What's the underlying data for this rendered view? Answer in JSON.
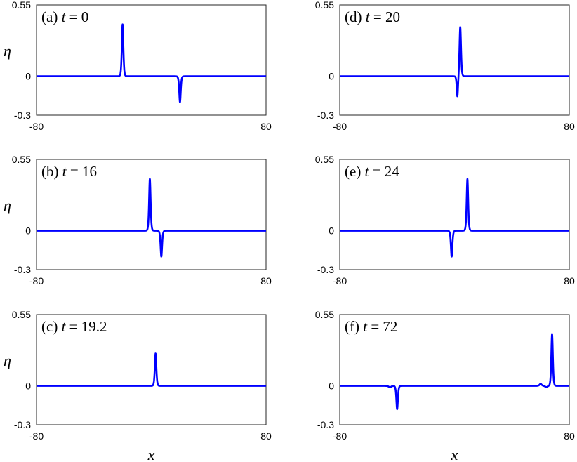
{
  "chart_data": [
    {
      "type": "line",
      "label": "(a)",
      "time_symbol": "t",
      "time_value": "0",
      "xlim": [
        -80,
        80
      ],
      "ylim": [
        -0.3,
        0.55
      ],
      "xticks": [
        "-80",
        "80"
      ],
      "yticks": [
        "-0.3",
        "0",
        "0.55"
      ],
      "ylabel": "η",
      "xlabel": "",
      "color": "#0000ff",
      "series": [
        {
          "pulses": [
            {
              "x": -20,
              "amp": 0.4,
              "width": 0.7
            },
            {
              "x": 20,
              "amp": -0.2,
              "width": 0.7
            }
          ]
        }
      ]
    },
    {
      "type": "line",
      "label": "(b)",
      "time_symbol": "t",
      "time_value": "16",
      "xlim": [
        -80,
        80
      ],
      "ylim": [
        -0.3,
        0.55
      ],
      "xticks": [
        "-80",
        "80"
      ],
      "yticks": [
        "-0.3",
        "0",
        "0.55"
      ],
      "ylabel": "η",
      "xlabel": "",
      "color": "#0000ff",
      "series": [
        {
          "pulses": [
            {
              "x": -1,
              "amp": 0.4,
              "width": 0.7
            },
            {
              "x": 7,
              "amp": -0.2,
              "width": 0.7
            }
          ]
        }
      ]
    },
    {
      "type": "line",
      "label": "(c)",
      "time_symbol": "t",
      "time_value": "19.2",
      "xlim": [
        -80,
        80
      ],
      "ylim": [
        -0.3,
        0.55
      ],
      "xticks": [
        "-80",
        "80"
      ],
      "yticks": [
        "-0.3",
        "0",
        "0.55"
      ],
      "ylabel": "η",
      "xlabel": "x",
      "color": "#0000ff",
      "series": [
        {
          "pulses": [
            {
              "x": 3,
              "amp": 0.25,
              "width": 0.7
            }
          ]
        }
      ]
    },
    {
      "type": "line",
      "label": "(d)",
      "time_symbol": "t",
      "time_value": "20",
      "xlim": [
        -80,
        80
      ],
      "ylim": [
        -0.3,
        0.55
      ],
      "xticks": [
        "-80",
        "80"
      ],
      "yticks": [
        "-0.3",
        "0",
        "0.55"
      ],
      "ylabel": "",
      "xlabel": "",
      "color": "#0000ff",
      "series": [
        {
          "pulses": [
            {
              "x": 4,
              "amp": 0.38,
              "width": 0.7
            },
            {
              "x": 2,
              "amp": -0.16,
              "width": 0.6
            }
          ]
        }
      ]
    },
    {
      "type": "line",
      "label": "(e)",
      "time_symbol": "t",
      "time_value": "24",
      "xlim": [
        -80,
        80
      ],
      "ylim": [
        -0.3,
        0.55
      ],
      "xticks": [
        "-80",
        "80"
      ],
      "yticks": [
        "-0.3",
        "0",
        "0.55"
      ],
      "ylabel": "",
      "xlabel": "",
      "color": "#0000ff",
      "series": [
        {
          "pulses": [
            {
              "x": 9,
              "amp": 0.4,
              "width": 0.7
            },
            {
              "x": -2,
              "amp": -0.2,
              "width": 0.7
            }
          ]
        }
      ]
    },
    {
      "type": "line",
      "label": "(f)",
      "time_symbol": "t",
      "time_value": "72",
      "xlim": [
        -80,
        80
      ],
      "ylim": [
        -0.3,
        0.55
      ],
      "xticks": [
        "-80",
        "80"
      ],
      "yticks": [
        "-0.3",
        "0",
        "0.55"
      ],
      "ylabel": "",
      "xlabel": "x",
      "color": "#0000ff",
      "series": [
        {
          "pulses": [
            {
              "x": 68,
              "amp": 0.4,
              "width": 0.7
            },
            {
              "x": 64,
              "amp": -0.01,
              "width": 1.0
            },
            {
              "x": 60,
              "amp": 0.015,
              "width": 1.0
            },
            {
              "x": -40,
              "amp": -0.18,
              "width": 0.7
            },
            {
              "x": -45,
              "amp": -0.01,
              "width": 1.2
            }
          ]
        }
      ]
    }
  ]
}
